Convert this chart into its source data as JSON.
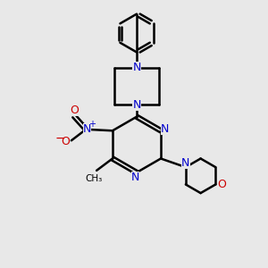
{
  "bg_color": "#e8e8e8",
  "bond_color": "#000000",
  "N_color": "#0000cc",
  "O_color": "#cc0000",
  "line_width": 1.8,
  "figsize": [
    3.0,
    3.0
  ],
  "dpi": 100,
  "xlim": [
    0,
    10
  ],
  "ylim": [
    0,
    10
  ]
}
